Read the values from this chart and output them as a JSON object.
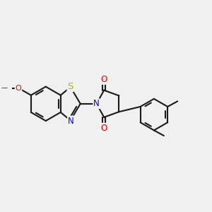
{
  "bg_color": "#f0f0f0",
  "bond_color": "#1a1a1a",
  "bond_width": 1.5,
  "atom_colors": {
    "S": "#b8b800",
    "N": "#0000ee",
    "O": "#ee0000",
    "C": "#1a1a1a"
  },
  "font_size": 8.5,
  "xlim": [
    -2.3,
    2.1
  ],
  "ylim": [
    -1.2,
    1.2
  ]
}
